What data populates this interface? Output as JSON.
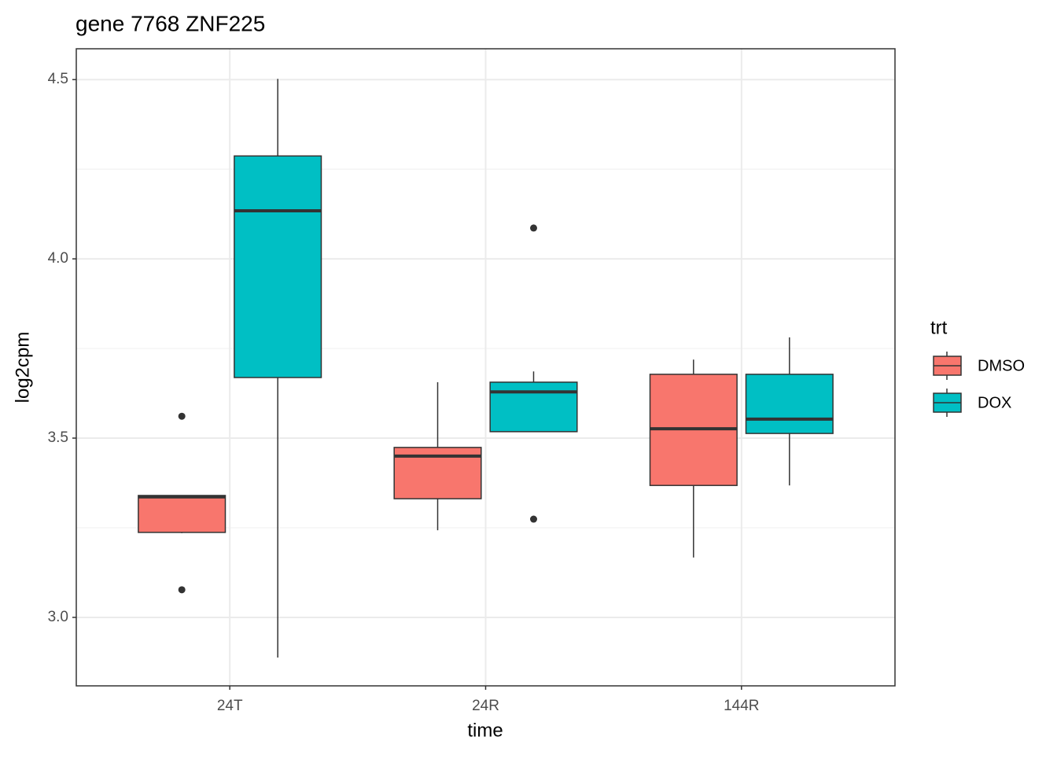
{
  "chart_data": {
    "type": "boxplot",
    "title": "gene 7768 ZNF225",
    "x_label": "time",
    "y_label": "log2cpm",
    "categories": [
      "24T",
      "24R",
      "144R"
    ],
    "ylim": [
      2.809,
      4.586
    ],
    "yticks": [
      {
        "value": 3,
        "label": "3.0"
      },
      3.5,
      {
        "value": 4,
        "label": "4.0"
      },
      4.5
    ],
    "minor_yticks": [
      3.25,
      3.75,
      4.25
    ],
    "grid": true,
    "legend_title": "trt",
    "legend_position": "right",
    "series": [
      {
        "name": "DMSO",
        "color": "#F8766D",
        "min": [
          3.235,
          3.243,
          3.167
        ],
        "q1": [
          3.237,
          3.331,
          3.368
        ],
        "median": [
          3.336,
          3.45,
          3.526
        ],
        "q3": [
          3.34,
          3.474,
          3.678
        ],
        "max": [
          3.34,
          3.656,
          3.719
        ],
        "outliers": [
          [
            3.561,
            3.077
          ],
          [],
          []
        ]
      },
      {
        "name": "DOX",
        "color": "#00BFC4",
        "min": [
          2.888,
          3.518,
          3.368
        ],
        "q1": [
          3.669,
          3.518,
          3.513
        ],
        "median": [
          4.134,
          3.629,
          3.553
        ],
        "q3": [
          4.287,
          3.656,
          3.678
        ],
        "max": [
          4.502,
          3.686,
          3.781
        ],
        "outliers": [
          [],
          [
            4.086,
            3.274
          ],
          []
        ]
      }
    ]
  }
}
